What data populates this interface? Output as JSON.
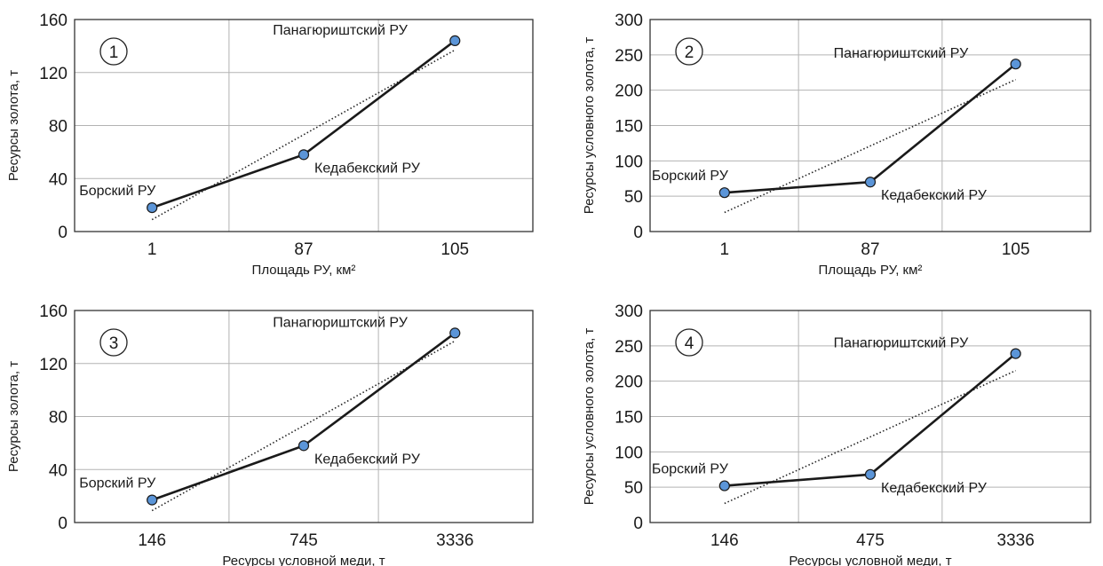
{
  "chart_data": [
    {
      "type": "line",
      "panel_label": "1",
      "categories": [
        "1",
        "87",
        "105"
      ],
      "series": [
        {
          "values": [
            18,
            58,
            144
          ],
          "labels": [
            "Борский РУ",
            "Кедабекский РУ",
            "Панагюриштский РУ"
          ]
        }
      ],
      "trendline": {
        "style": "dotted",
        "start": 9,
        "end": 137
      },
      "xlabel": "Площадь РУ, км²",
      "ylabel": "Ресурсы золота, т",
      "ylim": [
        0,
        160
      ],
      "yticks": [
        "0",
        "40",
        "80",
        "120",
        "160"
      ],
      "grid": true,
      "legend": "none"
    },
    {
      "type": "line",
      "panel_label": "2",
      "categories": [
        "1",
        "87",
        "105"
      ],
      "series": [
        {
          "values": [
            55,
            70,
            237
          ],
          "labels": [
            "Борский РУ",
            "Кедабекский РУ",
            "Панагюриштский РУ"
          ]
        }
      ],
      "trendline": {
        "style": "dotted",
        "start": 27,
        "end": 215
      },
      "xlabel": "Площадь РУ, км²",
      "ylabel": "Ресурсы условного золота, т",
      "ylim": [
        0,
        300
      ],
      "yticks": [
        "0",
        "50",
        "100",
        "150",
        "200",
        "250",
        "300"
      ],
      "grid": true,
      "legend": "none"
    },
    {
      "type": "line",
      "panel_label": "3",
      "categories": [
        "146",
        "745",
        "3336"
      ],
      "series": [
        {
          "values": [
            17,
            58,
            143
          ],
          "labels": [
            "Борский РУ",
            "Кедабекский РУ",
            "Панагюриштский РУ"
          ]
        }
      ],
      "trendline": {
        "style": "dotted",
        "start": 9,
        "end": 137
      },
      "xlabel": "Ресурсы условной меди, т",
      "ylabel": "Ресурсы золота, т",
      "ylim": [
        0,
        160
      ],
      "yticks": [
        "0",
        "40",
        "80",
        "120",
        "160"
      ],
      "grid": true,
      "legend": "none"
    },
    {
      "type": "line",
      "panel_label": "4",
      "categories": [
        "146",
        "475",
        "3336"
      ],
      "series": [
        {
          "values": [
            52,
            68,
            239
          ],
          "labels": [
            "Борский РУ",
            "Кедабекский РУ",
            "Панагюриштский РУ"
          ]
        }
      ],
      "trendline": {
        "style": "dotted",
        "start": 27,
        "end": 215
      },
      "xlabel": "Ресурсы условной меди, т",
      "ylabel": "Ресурсы условного золота, т",
      "ylim": [
        0,
        300
      ],
      "yticks": [
        "0",
        "50",
        "100",
        "150",
        "200",
        "250",
        "300"
      ],
      "grid": true,
      "legend": "none"
    }
  ],
  "colors": {
    "marker_fill": "#5b95d8",
    "series_line": "#1a1a1a",
    "grid": "#b3b3b3",
    "frame": "#333333"
  }
}
